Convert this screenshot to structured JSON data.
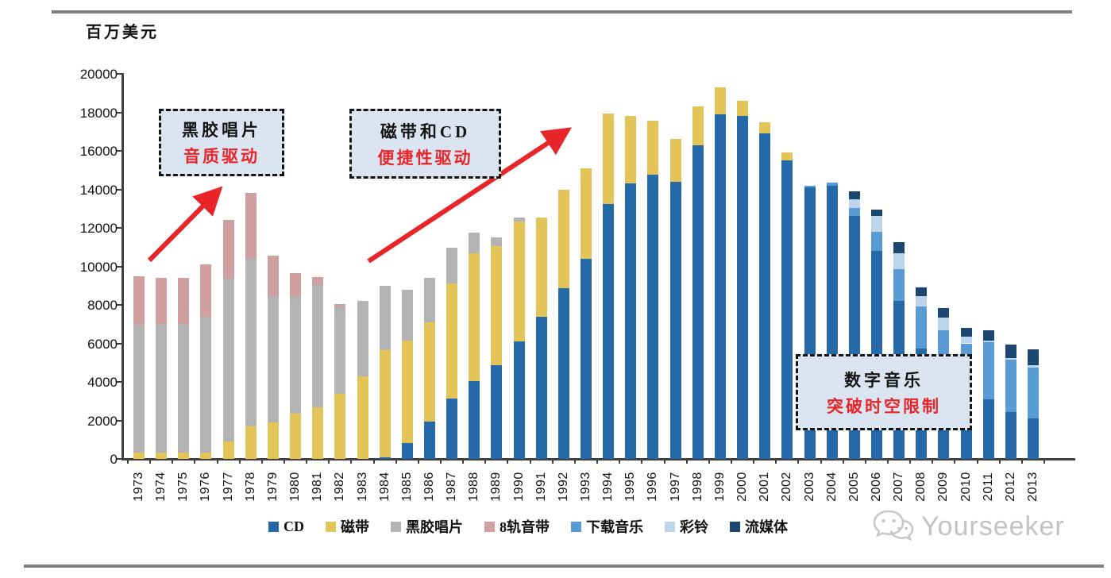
{
  "page": {
    "unit_label": "百万美元",
    "watermark_text": "Yourseeker"
  },
  "chart_data": {
    "type": "bar",
    "stacked": true,
    "title": "",
    "ylabel": "百万美元",
    "xlabel": "",
    "ylim": [
      0,
      20000
    ],
    "ytick_step": 2000,
    "grid": false,
    "legend_position": "bottom",
    "categories": [
      "1973",
      "1974",
      "1975",
      "1976",
      "1977",
      "1978",
      "1979",
      "1980",
      "1981",
      "1982",
      "1983",
      "1984",
      "1985",
      "1986",
      "1987",
      "1988",
      "1989",
      "1990",
      "1991",
      "1992",
      "1993",
      "1994",
      "1995",
      "1996",
      "1997",
      "1998",
      "1999",
      "2000",
      "2001",
      "2002",
      "2003",
      "2004",
      "2005",
      "2006",
      "2007",
      "2008",
      "2009",
      "2010",
      "2011",
      "2012",
      "2013"
    ],
    "series": [
      {
        "name": "CD",
        "color": "#2569A8",
        "values": [
          0,
          0,
          0,
          0,
          0,
          0,
          0,
          0,
          0,
          0,
          0,
          100,
          840,
          1950,
          3150,
          4050,
          4850,
          6100,
          7400,
          8850,
          10400,
          13250,
          14300,
          14750,
          14400,
          16300,
          17900,
          17800,
          16900,
          15500,
          14100,
          14200,
          12600,
          10800,
          8200,
          5750,
          4400,
          3700,
          3100,
          2450,
          2100
        ]
      },
      {
        "name": "磁带",
        "color": "#E2C458",
        "values": [
          350,
          350,
          350,
          350,
          900,
          1700,
          1900,
          2350,
          2700,
          3400,
          4300,
          5550,
          5300,
          5150,
          5950,
          6650,
          6200,
          6250,
          5150,
          5150,
          4700,
          4700,
          3500,
          2800,
          2200,
          2000,
          1400,
          800,
          600,
          400,
          0,
          0,
          0,
          0,
          0,
          0,
          0,
          0,
          0,
          0,
          0
        ]
      },
      {
        "name": "黑胶唱片",
        "color": "#B3B3B3",
        "values": [
          6600,
          6650,
          6650,
          7050,
          8450,
          8700,
          6550,
          6100,
          6350,
          4500,
          3900,
          3350,
          2650,
          2300,
          1850,
          1050,
          450,
          200,
          0,
          0,
          0,
          0,
          0,
          0,
          0,
          0,
          0,
          0,
          0,
          0,
          0,
          0,
          0,
          0,
          0,
          0,
          0,
          0,
          0,
          0,
          0
        ]
      },
      {
        "name": "8轨音带",
        "color": "#D0A0A0",
        "values": [
          2550,
          2400,
          2400,
          2700,
          3050,
          3400,
          2100,
          1200,
          400,
          150,
          0,
          0,
          0,
          0,
          0,
          0,
          0,
          0,
          0,
          0,
          0,
          0,
          0,
          0,
          0,
          0,
          0,
          0,
          0,
          0,
          0,
          0,
          0,
          0,
          0,
          0,
          0,
          0,
          0,
          0,
          0
        ]
      },
      {
        "name": "下载音乐",
        "color": "#5B9BD5",
        "values": [
          0,
          0,
          0,
          0,
          0,
          0,
          0,
          0,
          0,
          0,
          0,
          0,
          0,
          0,
          0,
          0,
          0,
          0,
          0,
          0,
          0,
          0,
          0,
          0,
          0,
          0,
          0,
          0,
          0,
          0,
          100,
          150,
          450,
          1000,
          1650,
          2150,
          2300,
          2300,
          2950,
          2700,
          2650
        ]
      },
      {
        "name": "彩铃",
        "color": "#BCD4EC",
        "values": [
          0,
          0,
          0,
          0,
          0,
          0,
          0,
          0,
          0,
          0,
          0,
          0,
          0,
          0,
          0,
          0,
          0,
          0,
          0,
          0,
          0,
          0,
          0,
          0,
          0,
          0,
          0,
          0,
          0,
          0,
          0,
          0,
          450,
          800,
          850,
          550,
          650,
          350,
          100,
          100,
          100
        ]
      },
      {
        "name": "流媒体",
        "color": "#1A466F",
        "values": [
          0,
          0,
          0,
          0,
          0,
          0,
          0,
          0,
          0,
          0,
          0,
          0,
          0,
          0,
          0,
          0,
          0,
          0,
          0,
          0,
          0,
          0,
          0,
          0,
          0,
          0,
          0,
          0,
          0,
          0,
          0,
          0,
          400,
          350,
          550,
          450,
          500,
          450,
          550,
          700,
          850
        ]
      }
    ],
    "annotations": [
      {
        "line1": "黑胶唱片",
        "line2": "音质驱动"
      },
      {
        "line1": "磁带和CD",
        "line2": "便捷性驱动"
      },
      {
        "line1": "数字音乐",
        "line2": "突破时空限制"
      }
    ]
  }
}
